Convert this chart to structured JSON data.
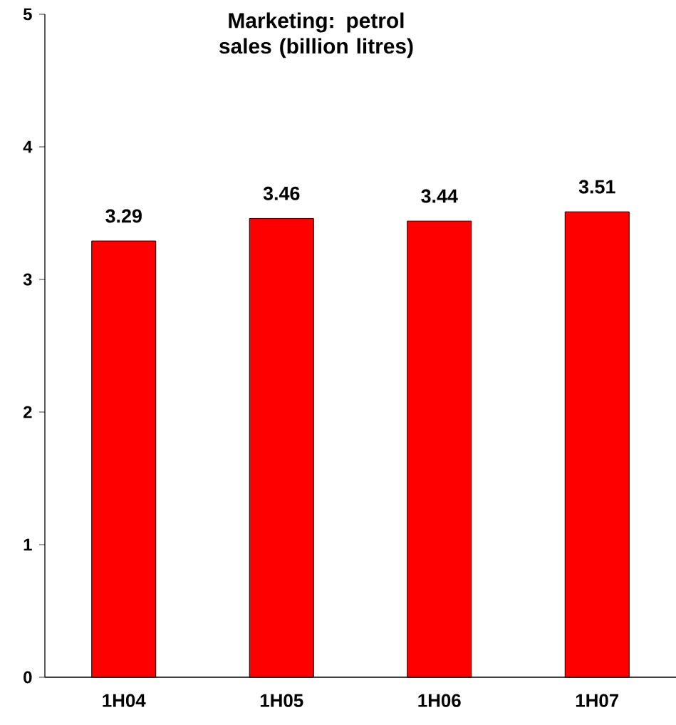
{
  "chart_data": {
    "type": "bar",
    "title": "Marketing: petrol sales (billion litres)",
    "categories": [
      "1H04",
      "1H05",
      "1H06",
      "1H07"
    ],
    "values": [
      3.29,
      3.46,
      3.44,
      3.51
    ],
    "color": "#ff0000",
    "ylim": [
      0,
      5
    ],
    "yticks": [
      0,
      1,
      2,
      3,
      4,
      5
    ],
    "data_labels": true
  }
}
